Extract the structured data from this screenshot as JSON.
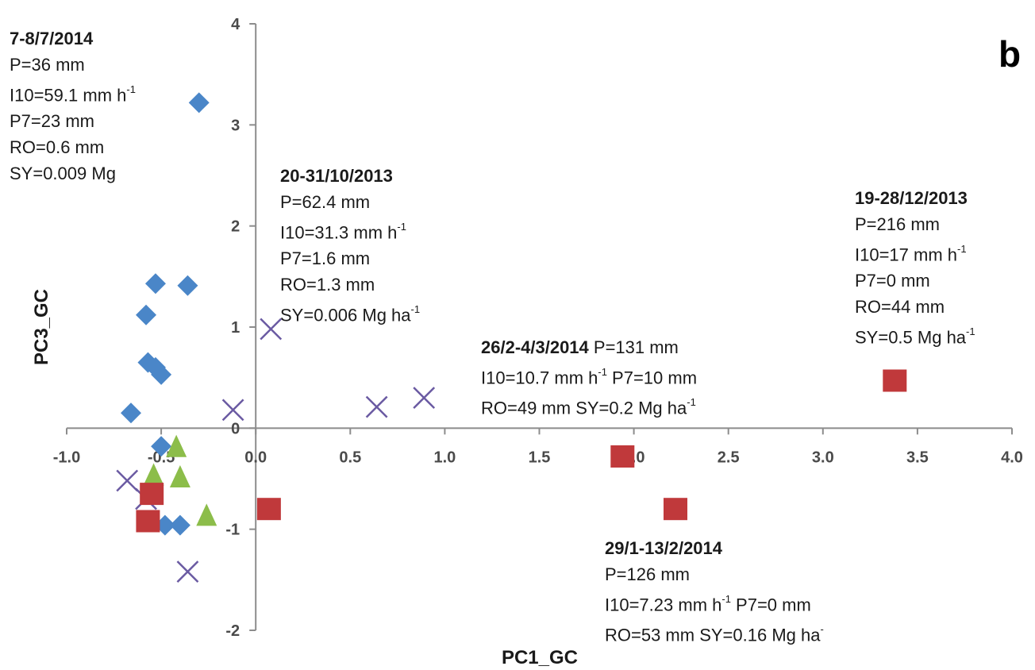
{
  "chart_data": {
    "type": "scatter",
    "panel_label": "b",
    "xlabel": "PC1_GC",
    "ylabel": "PC3_GC",
    "xlim": [
      -1.0,
      4.0
    ],
    "ylim": [
      -2,
      4
    ],
    "xticks": [
      "-1.0",
      "-0.5",
      "0.0",
      "0.5",
      "1.0",
      "1.5",
      "2.0",
      "2.5",
      "3.0",
      "3.5",
      "4.0"
    ],
    "yticks": [
      "-2",
      "-1",
      "0",
      "1",
      "2",
      "3",
      "4"
    ],
    "grid": false,
    "series": [
      {
        "marker": "diamond",
        "color": "#4a86c8",
        "points": [
          [
            -0.3,
            3.22
          ],
          [
            -0.53,
            1.43
          ],
          [
            -0.36,
            1.41
          ],
          [
            -0.58,
            1.12
          ],
          [
            -0.57,
            0.65
          ],
          [
            -0.53,
            0.6
          ],
          [
            -0.5,
            0.53
          ],
          [
            -0.66,
            0.15
          ],
          [
            -0.5,
            -0.18
          ],
          [
            -0.48,
            -0.96
          ],
          [
            -0.4,
            -0.96
          ]
        ]
      },
      {
        "marker": "triangle",
        "color": "#8cbd4a",
        "points": [
          [
            -0.42,
            -0.2
          ],
          [
            -0.54,
            -0.48
          ],
          [
            -0.4,
            -0.5
          ],
          [
            -0.26,
            -0.88
          ]
        ]
      },
      {
        "marker": "x",
        "color": "#6a5aa2",
        "points": [
          [
            -0.68,
            -0.52
          ],
          [
            -0.58,
            -0.7
          ],
          [
            0.08,
            0.98
          ],
          [
            -0.12,
            0.18
          ],
          [
            0.64,
            0.21
          ],
          [
            0.89,
            0.3
          ],
          [
            -0.36,
            -1.42
          ]
        ]
      },
      {
        "marker": "square",
        "color": "#c0393b",
        "points": [
          [
            -0.55,
            -0.65
          ],
          [
            -0.57,
            -0.92
          ],
          [
            0.07,
            -0.8
          ],
          [
            1.94,
            -0.28
          ],
          [
            2.22,
            -0.8
          ],
          [
            3.38,
            0.47
          ]
        ]
      }
    ],
    "annotations": [
      {
        "id": "a1",
        "title": "7-8/7/2014",
        "lines": [
          [
            "P=36 mm"
          ],
          [
            "I10=59.1 mm h",
            "-1"
          ],
          [
            "P7=23 mm"
          ],
          [
            "RO=0.6 mm"
          ],
          [
            "SY=0.009 Mg"
          ]
        ]
      },
      {
        "id": "a2",
        "title": "20-31/10/2013",
        "lines": [
          [
            "P=62.4 mm"
          ],
          [
            "I10=31.3 mm h",
            "-1"
          ],
          [
            "P7=1.6 mm"
          ],
          [
            "RO=1.3 mm"
          ],
          [
            "SY=0.006 Mg ha",
            "-1"
          ]
        ]
      },
      {
        "id": "a3",
        "title": "19-28/12/2013",
        "lines": [
          [
            "P=216 mm"
          ],
          [
            "I10=17 mm h",
            "-1"
          ],
          [
            "P7=0 mm"
          ],
          [
            "RO=44 mm"
          ],
          [
            "SY=0.5 Mg ha",
            "-1"
          ]
        ]
      },
      {
        "id": "a4",
        "title": "26/2-4/3/2014",
        "title_suffix": " P=131 mm",
        "lines": [
          [
            "I10=10.7 mm h",
            "-1",
            " P7=10 mm"
          ],
          [
            "RO=49 mm SY=0.2 Mg ha",
            "-1"
          ]
        ]
      },
      {
        "id": "a5",
        "title": "29/1-13/2/2014",
        "lines": [
          [
            "P=126 mm"
          ],
          [
            "I10=7.23 mm h",
            "-1",
            " P7=0 mm"
          ],
          [
            "RO=53 mm SY=0.16 Mg ha",
            "-"
          ]
        ]
      }
    ]
  }
}
